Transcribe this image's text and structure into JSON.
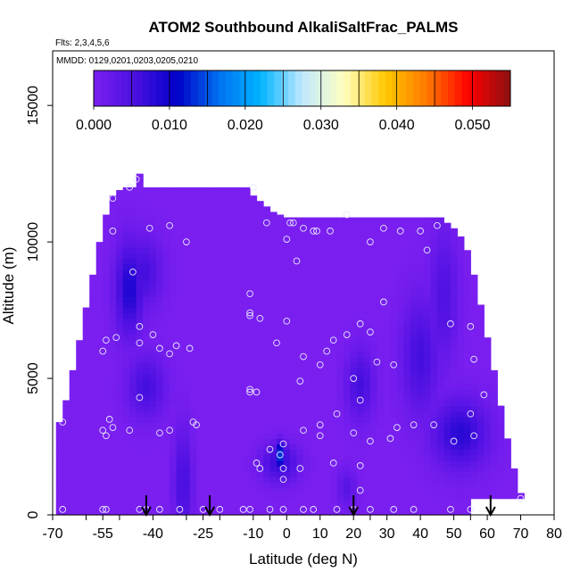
{
  "chart_data": {
    "type": "heatmap",
    "title": "ATOM2 Southbound AlkaliSaltFrac_PALMS",
    "subtitle_flights": "Flts: 2,3,4,5,6",
    "subtitle_dates": "MMDD: 0129,0201,0203,0205,0210",
    "xlabel": "Latitude (deg N)",
    "ylabel": "Altitude (m)",
    "xlim": [
      -70,
      80
    ],
    "ylim": [
      0,
      17000
    ],
    "x_ticks": [
      -70,
      -60,
      -55,
      -50,
      -40,
      -30,
      -25,
      -20,
      -10,
      -5,
      0,
      10,
      20,
      25,
      30,
      40,
      50,
      55,
      60,
      70,
      80
    ],
    "x_tick_labels": [
      "-70",
      "-55",
      "-40",
      "-25",
      "-10",
      "0",
      "10",
      "20",
      "30",
      "40",
      "50",
      "60",
      "70",
      "80"
    ],
    "y_ticks": [
      0,
      5000,
      10000,
      15000
    ],
    "y_tick_labels": [
      "0",
      "5000",
      "10000",
      "15000"
    ],
    "colorbar": {
      "min": 0.0,
      "max": 0.055,
      "tick_values": [
        0.0,
        0.01,
        0.02,
        0.03,
        0.04,
        0.05
      ],
      "tick_labels": [
        "0.000",
        "0.010",
        "0.020",
        "0.030",
        "0.040",
        "0.050"
      ],
      "colors": [
        "#7a1ff0",
        "#4a10e0",
        "#0000c8",
        "#0070f0",
        "#00b4ff",
        "#bfe8ff",
        "#ffffc0",
        "#ffc800",
        "#ff7800",
        "#ff0000",
        "#8b1010"
      ]
    },
    "background_value": 0.0,
    "coverage_columns": [
      {
        "lat": -68,
        "bottom": 0,
        "top": 3400
      },
      {
        "lat": -66,
        "bottom": 0,
        "top": 4200
      },
      {
        "lat": -64,
        "bottom": 0,
        "top": 5300
      },
      {
        "lat": -62,
        "bottom": 0,
        "top": 6400
      },
      {
        "lat": -60,
        "bottom": 0,
        "top": 7600
      },
      {
        "lat": -58,
        "bottom": 0,
        "top": 8800
      },
      {
        "lat": -56,
        "bottom": 0,
        "top": 10000
      },
      {
        "lat": -54,
        "bottom": 0,
        "top": 11000
      },
      {
        "lat": -52,
        "bottom": 0,
        "top": 11700
      },
      {
        "lat": -50,
        "bottom": 0,
        "top": 11900
      },
      {
        "lat": -48,
        "bottom": 0,
        "top": 12000
      },
      {
        "lat": -46,
        "bottom": 0,
        "top": 12000
      },
      {
        "lat": -44,
        "bottom": 0,
        "top": 12500
      },
      {
        "lat": -42,
        "bottom": 0,
        "top": 12000
      },
      {
        "lat": -40,
        "bottom": 0,
        "top": 12000
      },
      {
        "lat": -38,
        "bottom": 0,
        "top": 12000
      },
      {
        "lat": -36,
        "bottom": 0,
        "top": 12000
      },
      {
        "lat": -34,
        "bottom": 0,
        "top": 12000
      },
      {
        "lat": -32,
        "bottom": 0,
        "top": 12000
      },
      {
        "lat": -30,
        "bottom": 0,
        "top": 12000
      },
      {
        "lat": -28,
        "bottom": 0,
        "top": 12000
      },
      {
        "lat": -26,
        "bottom": 0,
        "top": 12000
      },
      {
        "lat": -24,
        "bottom": 0,
        "top": 12000
      },
      {
        "lat": -22,
        "bottom": 0,
        "top": 12000
      },
      {
        "lat": -20,
        "bottom": 0,
        "top": 12000
      },
      {
        "lat": -18,
        "bottom": 0,
        "top": 12000
      },
      {
        "lat": -16,
        "bottom": 0,
        "top": 12000
      },
      {
        "lat": -14,
        "bottom": 0,
        "top": 12000
      },
      {
        "lat": -12,
        "bottom": 0,
        "top": 12000
      },
      {
        "lat": -10,
        "bottom": 0,
        "top": 11700
      },
      {
        "lat": -8,
        "bottom": 0,
        "top": 11500
      },
      {
        "lat": -6,
        "bottom": 0,
        "top": 11300
      },
      {
        "lat": -4,
        "bottom": 0,
        "top": 11100
      },
      {
        "lat": -2,
        "bottom": 0,
        "top": 11000
      },
      {
        "lat": 0,
        "bottom": 0,
        "top": 10900
      },
      {
        "lat": 2,
        "bottom": 0,
        "top": 10900
      },
      {
        "lat": 4,
        "bottom": 0,
        "top": 10900
      },
      {
        "lat": 6,
        "bottom": 0,
        "top": 10900
      },
      {
        "lat": 8,
        "bottom": 0,
        "top": 10900
      },
      {
        "lat": 10,
        "bottom": 0,
        "top": 10900
      },
      {
        "lat": 12,
        "bottom": 0,
        "top": 10900
      },
      {
        "lat": 14,
        "bottom": 0,
        "top": 10900
      },
      {
        "lat": 16,
        "bottom": 0,
        "top": 10900
      },
      {
        "lat": 18,
        "bottom": 0,
        "top": 10900
      },
      {
        "lat": 20,
        "bottom": 0,
        "top": 10900
      },
      {
        "lat": 22,
        "bottom": 0,
        "top": 10900
      },
      {
        "lat": 24,
        "bottom": 0,
        "top": 10900
      },
      {
        "lat": 26,
        "bottom": 0,
        "top": 10900
      },
      {
        "lat": 28,
        "bottom": 0,
        "top": 10900
      },
      {
        "lat": 30,
        "bottom": 0,
        "top": 10900
      },
      {
        "lat": 32,
        "bottom": 0,
        "top": 10900
      },
      {
        "lat": 34,
        "bottom": 0,
        "top": 10900
      },
      {
        "lat": 36,
        "bottom": 0,
        "top": 10900
      },
      {
        "lat": 38,
        "bottom": 0,
        "top": 10900
      },
      {
        "lat": 40,
        "bottom": 0,
        "top": 10900
      },
      {
        "lat": 42,
        "bottom": 0,
        "top": 10900
      },
      {
        "lat": 44,
        "bottom": 0,
        "top": 10900
      },
      {
        "lat": 46,
        "bottom": 0,
        "top": 10900
      },
      {
        "lat": 48,
        "bottom": 0,
        "top": 10700
      },
      {
        "lat": 50,
        "bottom": 0,
        "top": 10500
      },
      {
        "lat": 52,
        "bottom": 0,
        "top": 10200
      },
      {
        "lat": 54,
        "bottom": 0,
        "top": 9700
      },
      {
        "lat": 56,
        "bottom": 0,
        "top": 8800
      },
      {
        "lat": 58,
        "bottom": 0,
        "top": 7700
      },
      {
        "lat": 60,
        "bottom": 0,
        "top": 6500
      },
      {
        "lat": 62,
        "bottom": 0,
        "top": 5300
      },
      {
        "lat": 64,
        "bottom": 0,
        "top": 4000
      },
      {
        "lat": 66,
        "bottom": 0,
        "top": 2800
      },
      {
        "lat": 68,
        "bottom": 0,
        "top": 1700
      },
      {
        "lat": 70,
        "bottom": 0,
        "top": 800
      }
    ],
    "coverage_gaps": [
      {
        "lat_min": 56,
        "lat_max": 72,
        "alt_min": 0,
        "alt_max": 600
      }
    ],
    "hotspots": [
      {
        "lat": -47,
        "alt": 8300,
        "lat_sigma": 3,
        "alt_sigma": 1200,
        "value": 0.009
      },
      {
        "lat": -43,
        "alt": 8900,
        "lat_sigma": 4,
        "alt_sigma": 900,
        "value": 0.006
      },
      {
        "lat": -42,
        "alt": 4700,
        "lat_sigma": 4,
        "alt_sigma": 800,
        "value": 0.006
      },
      {
        "lat": -31,
        "alt": 1200,
        "lat_sigma": 2,
        "alt_sigma": 1400,
        "value": 0.006
      },
      {
        "lat": -2,
        "alt": 2200,
        "lat_sigma": 1.5,
        "alt_sigma": 350,
        "value": 0.014
      },
      {
        "lat": -2,
        "alt": 1900,
        "lat_sigma": 4,
        "alt_sigma": 500,
        "value": 0.007
      },
      {
        "lat": 22,
        "alt": 4800,
        "lat_sigma": 3,
        "alt_sigma": 900,
        "value": 0.006
      },
      {
        "lat": 40,
        "alt": 5800,
        "lat_sigma": 4,
        "alt_sigma": 1500,
        "value": 0.006
      },
      {
        "lat": 47,
        "alt": 8000,
        "lat_sigma": 3,
        "alt_sigma": 1700,
        "value": 0.005
      },
      {
        "lat": 52,
        "alt": 3000,
        "lat_sigma": 6,
        "alt_sigma": 900,
        "value": 0.008
      },
      {
        "lat": 18,
        "alt": 1000,
        "lat_sigma": 2,
        "alt_sigma": 500,
        "value": 0.004
      }
    ],
    "sample_points": [
      {
        "x": -67,
        "y": 3400
      },
      {
        "x": -67,
        "y": 200
      },
      {
        "x": -55,
        "y": 200
      },
      {
        "x": -54,
        "y": 200
      },
      {
        "x": -55,
        "y": 3100
      },
      {
        "x": -54,
        "y": 2900
      },
      {
        "x": -53,
        "y": 3500
      },
      {
        "x": -52,
        "y": 3200
      },
      {
        "x": -55,
        "y": 6000
      },
      {
        "x": -54,
        "y": 6400
      },
      {
        "x": -51,
        "y": 6500
      },
      {
        "x": -52,
        "y": 10400
      },
      {
        "x": -52,
        "y": 11600
      },
      {
        "x": -47,
        "y": 12000
      },
      {
        "x": -45,
        "y": 12300
      },
      {
        "x": -41,
        "y": 10500
      },
      {
        "x": -35,
        "y": 10600
      },
      {
        "x": -30,
        "y": 10000
      },
      {
        "x": -46,
        "y": 8900
      },
      {
        "x": -44,
        "y": 6900
      },
      {
        "x": -40,
        "y": 6600
      },
      {
        "x": -44,
        "y": 6300
      },
      {
        "x": -38,
        "y": 6100
      },
      {
        "x": -35,
        "y": 5900
      },
      {
        "x": -33,
        "y": 6200
      },
      {
        "x": -29,
        "y": 6100
      },
      {
        "x": -44,
        "y": 4300
      },
      {
        "x": -47,
        "y": 3100
      },
      {
        "x": -38,
        "y": 3000
      },
      {
        "x": -35,
        "y": 3100
      },
      {
        "x": -28,
        "y": 3400
      },
      {
        "x": -27,
        "y": 3300
      },
      {
        "x": -44,
        "y": 200
      },
      {
        "x": -42,
        "y": 200
      },
      {
        "x": -38,
        "y": 200
      },
      {
        "x": -32,
        "y": 200
      },
      {
        "x": -25,
        "y": 200
      },
      {
        "x": -20,
        "y": 200
      },
      {
        "x": -13,
        "y": 200
      },
      {
        "x": -11,
        "y": 200
      },
      {
        "x": -5,
        "y": 200
      },
      {
        "x": -1,
        "y": 200
      },
      {
        "x": 5,
        "y": 200
      },
      {
        "x": 8,
        "y": 200
      },
      {
        "x": 15,
        "y": 200
      },
      {
        "x": 20,
        "y": 200
      },
      {
        "x": 25,
        "y": 200
      },
      {
        "x": 32,
        "y": 200
      },
      {
        "x": 38,
        "y": 200
      },
      {
        "x": 49,
        "y": 200
      },
      {
        "x": 55,
        "y": 200
      },
      {
        "x": 70,
        "y": 600
      },
      {
        "x": -11,
        "y": 8100
      },
      {
        "x": -11,
        "y": 7300
      },
      {
        "x": -11,
        "y": 7400
      },
      {
        "x": -8,
        "y": 7200
      },
      {
        "x": -11,
        "y": 4600
      },
      {
        "x": -11,
        "y": 4500
      },
      {
        "x": -9,
        "y": 4500
      },
      {
        "x": -3,
        "y": 6300
      },
      {
        "x": 0,
        "y": 7100
      },
      {
        "x": 0,
        "y": 10100
      },
      {
        "x": 1,
        "y": 10700
      },
      {
        "x": 2,
        "y": 10700
      },
      {
        "x": 3,
        "y": 9300
      },
      {
        "x": -6,
        "y": 10700
      },
      {
        "x": -10,
        "y": 12000
      },
      {
        "x": 5,
        "y": 10500
      },
      {
        "x": 8,
        "y": 10400
      },
      {
        "x": 9,
        "y": 10400
      },
      {
        "x": 13,
        "y": 10400
      },
      {
        "x": 18,
        "y": 11000
      },
      {
        "x": 25,
        "y": 10000
      },
      {
        "x": 29,
        "y": 10500
      },
      {
        "x": 34,
        "y": 10400
      },
      {
        "x": 40,
        "y": 10400
      },
      {
        "x": 45,
        "y": 10600
      },
      {
        "x": 42,
        "y": 9700
      },
      {
        "x": 5,
        "y": 5800
      },
      {
        "x": 10,
        "y": 5500
      },
      {
        "x": 12,
        "y": 6000
      },
      {
        "x": 14,
        "y": 6400
      },
      {
        "x": 18,
        "y": 6600
      },
      {
        "x": 22,
        "y": 7000
      },
      {
        "x": 25,
        "y": 6700
      },
      {
        "x": 29,
        "y": 7800
      },
      {
        "x": 27,
        "y": 5600
      },
      {
        "x": 32,
        "y": 5500
      },
      {
        "x": 4,
        "y": 4900
      },
      {
        "x": 20,
        "y": 5000
      },
      {
        "x": 22,
        "y": 4200
      },
      {
        "x": 15,
        "y": 3700
      },
      {
        "x": 10,
        "y": 3300
      },
      {
        "x": 10,
        "y": 2900
      },
      {
        "x": 5,
        "y": 3100
      },
      {
        "x": 20,
        "y": 3000
      },
      {
        "x": 25,
        "y": 2700
      },
      {
        "x": 31,
        "y": 2800
      },
      {
        "x": 33,
        "y": 3200
      },
      {
        "x": 38,
        "y": 3300
      },
      {
        "x": 44,
        "y": 3300
      },
      {
        "x": 49,
        "y": 7000
      },
      {
        "x": 55,
        "y": 6900
      },
      {
        "x": 56,
        "y": 5700
      },
      {
        "x": 59,
        "y": 4400
      },
      {
        "x": 55,
        "y": 3700
      },
      {
        "x": 56,
        "y": 2900
      },
      {
        "x": 50,
        "y": 2700
      },
      {
        "x": -1,
        "y": 2600
      },
      {
        "x": -5,
        "y": 2400
      },
      {
        "x": -2,
        "y": 2200
      },
      {
        "x": -9,
        "y": 1900
      },
      {
        "x": -8,
        "y": 1700
      },
      {
        "x": -1,
        "y": 1700
      },
      {
        "x": 4,
        "y": 1700
      },
      {
        "x": 14,
        "y": 1900
      },
      {
        "x": 22,
        "y": 1800
      },
      {
        "x": 22,
        "y": 900
      },
      {
        "x": -1,
        "y": 1300
      }
    ],
    "flight_markers": [
      -42,
      -23,
      20,
      61
    ]
  }
}
